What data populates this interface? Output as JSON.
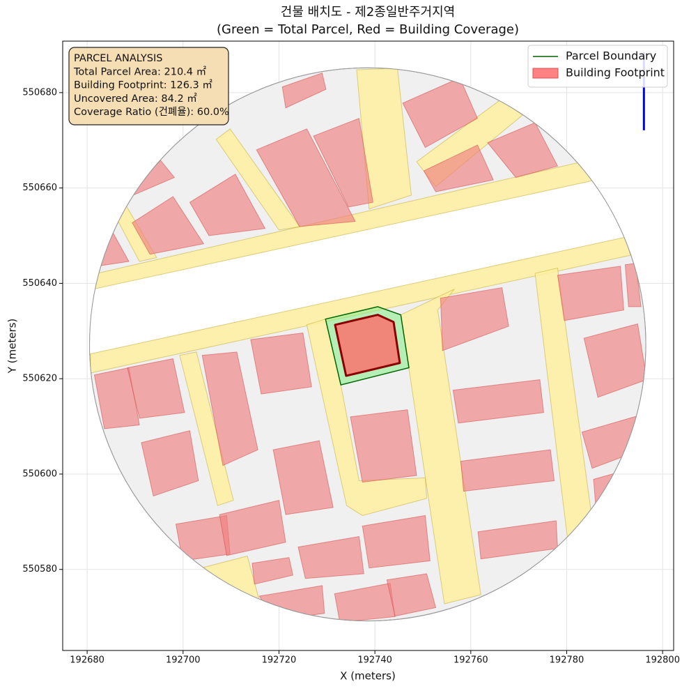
{
  "chart_data": {
    "type": "map",
    "title": [
      "건물 배치도 - 제2종일반주거지역",
      "(Green = Total Parcel, Red = Building Coverage)"
    ],
    "xlabel": "X (meters)",
    "ylabel": "Y (meters)",
    "xlim": [
      192674.9,
      192802.3
    ],
    "ylim": [
      550563.0,
      550690.8
    ],
    "xticks": [
      192680,
      192700,
      192720,
      192740,
      192760,
      192780,
      192800
    ],
    "yticks": [
      550580,
      550600,
      550620,
      550640,
      550660,
      550680
    ],
    "grid": true,
    "legend": "upper right",
    "study_area": {
      "center": [
        192738.5,
        550627.2
      ],
      "radius": 58
    },
    "gap_band": [
      [
        192670,
        550636.3
      ],
      [
        192810,
        550666.9
      ],
      [
        192810,
        550653.6
      ],
      [
        192670,
        550622.9
      ]
    ],
    "roads": [
      [
        [
          192680.4,
          550641.7
        ],
        [
          192783.2,
          550665.5
        ],
        [
          192786.1,
          550661.7
        ],
        [
          192680.4,
          550638.6
        ]
      ],
      [
        [
          192680.7,
          550625.2
        ],
        [
          192792.3,
          550649.7
        ],
        [
          192793.3,
          550645.9
        ],
        [
          192680.7,
          550621.2
        ]
      ],
      [
        [
          192736.2,
          550684.8
        ],
        [
          192744.7,
          550685.1
        ],
        [
          192747.6,
          550658.5
        ],
        [
          192738.8,
          550655.6
        ]
      ],
      [
        [
          192706.9,
          550670.2
        ],
        [
          192709.8,
          550672.4
        ],
        [
          192724.3,
          550651.9
        ],
        [
          192720.0,
          550651.2
        ]
      ],
      [
        [
          192685.1,
          550655.6
        ],
        [
          192687.7,
          550657.0
        ],
        [
          192694.5,
          550645.4
        ],
        [
          192690.9,
          550644.6
        ]
      ],
      [
        [
          192748.7,
          550665.5
        ],
        [
          192766.2,
          550678.5
        ],
        [
          192770.8,
          550675.3
        ],
        [
          192752.7,
          550660.3
        ]
      ],
      [
        [
          192725.8,
          550631.3
        ],
        [
          192729.7,
          550632.5
        ],
        [
          192732.9,
          550618.7
        ],
        [
          192736.7,
          550598.6
        ],
        [
          192750.5,
          550599.2
        ],
        [
          192750.8,
          550594.9
        ],
        [
          192737.4,
          550591.3
        ],
        [
          192734.1,
          550593.4
        ]
      ],
      [
        [
          192745.4,
          550633.4
        ],
        [
          192756.6,
          550638.8
        ],
        [
          192753.1,
          550634.4
        ],
        [
          192762.1,
          550574.7
        ],
        [
          192754.5,
          550572.8
        ]
      ],
      [
        [
          192699.3,
          550624.9
        ],
        [
          192702.8,
          550625.6
        ],
        [
          192710.5,
          550594.5
        ],
        [
          192707.2,
          550593.4
        ]
      ],
      [
        [
          192773.4,
          550642.1
        ],
        [
          192778.1,
          550643.2
        ],
        [
          192785.3,
          550590.5
        ],
        [
          192780.3,
          550585.4
        ]
      ],
      [
        [
          192701.1,
          550579.6
        ],
        [
          192713.4,
          550582.8
        ],
        [
          192716.3,
          550572.0
        ],
        [
          192705.4,
          550576.6
        ]
      ]
    ],
    "buildings": [
      [
        [
          192689.4,
          550652.7
        ],
        [
          192697.9,
          550658.2
        ],
        [
          192704.3,
          550648.3
        ],
        [
          192693.1,
          550646.1
        ]
      ],
      [
        [
          192701.4,
          550657.0
        ],
        [
          192710.9,
          550662.9
        ],
        [
          192717.1,
          550651.5
        ],
        [
          192705.4,
          550650.0
        ]
      ],
      [
        [
          192715.3,
          550668.0
        ],
        [
          192725.8,
          550672.4
        ],
        [
          192735.9,
          550653.0
        ],
        [
          192724.3,
          550651.9
        ]
      ],
      [
        [
          192727.2,
          550670.9
        ],
        [
          192736.7,
          550674.6
        ],
        [
          192739.6,
          550657.0
        ],
        [
          192734.5,
          550656.0
        ]
      ],
      [
        [
          192745.8,
          550677.8
        ],
        [
          192757.7,
          550683.1
        ],
        [
          192761.4,
          550674.6
        ],
        [
          192750.5,
          550668.5
        ]
      ],
      [
        [
          192763.5,
          550669.5
        ],
        [
          192773.4,
          550673.7
        ],
        [
          192778.1,
          550664.6
        ],
        [
          192769.4,
          550662.2
        ]
      ],
      [
        [
          192750.2,
          550663.6
        ],
        [
          192761.4,
          550669.0
        ],
        [
          192764.7,
          550661.7
        ],
        [
          192752.7,
          550659.2
        ]
      ],
      [
        [
          192720.7,
          550681.2
        ],
        [
          192729.0,
          550684.1
        ],
        [
          192729.8,
          550680.7
        ],
        [
          192721.4,
          550676.8
        ]
      ],
      [
        [
          192681.5,
          550643.2
        ],
        [
          192684.4,
          550652.4
        ],
        [
          192688.7,
          550644.6
        ],
        [
          192682.2,
          550643.6
        ]
      ],
      [
        [
          192687.3,
          550657.3
        ],
        [
          192695.3,
          550665.8
        ],
        [
          192698.2,
          550662.2
        ],
        [
          192688.0,
          550657.8
        ]
      ],
      [
        [
          192753.7,
          550636.9
        ],
        [
          192766.5,
          550639.1
        ],
        [
          192767.9,
          550631.0
        ],
        [
          192754.1,
          550625.9
        ]
      ],
      [
        [
          192778.1,
          550641.7
        ],
        [
          192791.2,
          550643.6
        ],
        [
          192791.9,
          550634.4
        ],
        [
          192779.5,
          550632.2
        ]
      ],
      [
        [
          192783.6,
          550628.5
        ],
        [
          192794.8,
          550631.5
        ],
        [
          192796.7,
          550619.8
        ],
        [
          192786.5,
          550616.1
        ]
      ],
      [
        [
          192714.1,
          550628.2
        ],
        [
          192725.0,
          550629.6
        ],
        [
          192726.8,
          550618.3
        ],
        [
          192716.3,
          550616.8
        ]
      ],
      [
        [
          192704.0,
          550624.9
        ],
        [
          192711.2,
          550625.6
        ],
        [
          192715.6,
          550605.1
        ],
        [
          192708.3,
          550601.8
        ]
      ],
      [
        [
          192681.5,
          550620.8
        ],
        [
          192688.7,
          550622.3
        ],
        [
          192690.9,
          550610.3
        ],
        [
          192683.6,
          550609.5
        ]
      ],
      [
        [
          192688.4,
          550622.3
        ],
        [
          192697.9,
          550624.2
        ],
        [
          192700.3,
          550612.9
        ],
        [
          192690.9,
          550611.7
        ]
      ],
      [
        [
          192691.3,
          550606.6
        ],
        [
          192701.4,
          550609.1
        ],
        [
          192703.2,
          550598.6
        ],
        [
          192693.8,
          550595.4
        ]
      ],
      [
        [
          192718.8,
          550605.1
        ],
        [
          192728.4,
          550607.0
        ],
        [
          192731.3,
          550593.0
        ],
        [
          192721.4,
          550591.5
        ]
      ],
      [
        [
          192734.9,
          550612.0
        ],
        [
          192746.8,
          550613.5
        ],
        [
          192748.7,
          550599.7
        ],
        [
          192737.4,
          550598.3
        ]
      ],
      [
        [
          192756.3,
          550617.6
        ],
        [
          192774.4,
          550619.8
        ],
        [
          192775.2,
          550612.9
        ],
        [
          192757.4,
          550610.7
        ]
      ],
      [
        [
          192757.9,
          550602.7
        ],
        [
          192776.6,
          550605.1
        ],
        [
          192777.4,
          550598.6
        ],
        [
          192758.5,
          550596.4
        ]
      ],
      [
        [
          192783.2,
          550608.8
        ],
        [
          192795.8,
          550612.5
        ],
        [
          192797.7,
          550605.9
        ],
        [
          192785.3,
          550601.2
        ]
      ],
      [
        [
          192698.5,
          550589.5
        ],
        [
          192709.1,
          550591.3
        ],
        [
          192709.8,
          550583.2
        ],
        [
          192699.9,
          550581.8
        ]
      ],
      [
        [
          192707.6,
          550591.5
        ],
        [
          192720.0,
          550594.5
        ],
        [
          192721.4,
          550585.7
        ],
        [
          192709.1,
          550582.9
        ]
      ],
      [
        [
          192724.0,
          550584.7
        ],
        [
          192736.7,
          550586.9
        ],
        [
          192737.7,
          550579.1
        ],
        [
          192725.5,
          550578.1
        ]
      ],
      [
        [
          192737.4,
          550589.1
        ],
        [
          192750.5,
          550591.3
        ],
        [
          192751.5,
          550581.8
        ],
        [
          192738.8,
          550580.3
        ]
      ],
      [
        [
          192761.5,
          550587.9
        ],
        [
          192777.8,
          550590.2
        ],
        [
          192778.1,
          550584.4
        ],
        [
          192762.1,
          550582.2
        ]
      ],
      [
        [
          192714.4,
          550581.3
        ],
        [
          192722.1,
          550582.5
        ],
        [
          192722.9,
          550578.8
        ],
        [
          192714.9,
          550576.9
        ]
      ],
      [
        [
          192715.9,
          550574.4
        ],
        [
          192729.0,
          550576.6
        ],
        [
          192729.5,
          550570.8
        ],
        [
          192719.2,
          550569.3
        ]
      ],
      [
        [
          192731.6,
          550574.9
        ],
        [
          192743.2,
          550577.1
        ],
        [
          192744.2,
          550570.1
        ],
        [
          192732.7,
          550568.9
        ]
      ],
      [
        [
          192742.5,
          550577.8
        ],
        [
          192750.8,
          550579.1
        ],
        [
          192752.7,
          550572.0
        ],
        [
          192744.2,
          550570.2
        ]
      ],
      [
        [
          192785.6,
          550598.9
        ],
        [
          192791.2,
          550600.5
        ],
        [
          192791.9,
          550594.2
        ],
        [
          192786.1,
          550592.7
        ]
      ],
      [
        [
          192792.2,
          550643.9
        ],
        [
          192794.4,
          550644.2
        ],
        [
          192795.5,
          550635.1
        ],
        [
          192792.9,
          550635.1
        ]
      ]
    ],
    "series": [
      {
        "name": "Parcel Boundary",
        "color": "#006400",
        "fill": "#90ee90",
        "polygon": [
          [
            192729.7,
            550632.5
          ],
          [
            192740.6,
            550635.1
          ],
          [
            192745.4,
            550633.4
          ],
          [
            192747.1,
            550622.3
          ],
          [
            192732.9,
            550618.7
          ]
        ]
      },
      {
        "name": "Building Footprint",
        "color": "#8b0000",
        "fill": "#ff6b6b",
        "polygon": [
          [
            192731.7,
            550631.3
          ],
          [
            192740.6,
            550633.4
          ],
          [
            192743.9,
            550631.9
          ],
          [
            192745.2,
            550623.3
          ],
          [
            192734.0,
            550620.6
          ]
        ]
      }
    ],
    "annotation": [
      "PARCEL ANALYSIS",
      "Total Parcel Area: 210.4 ㎡",
      "Building Footprint: 126.3 ㎡",
      "Uncovered Area: 84.2 ㎡",
      "Coverage Ratio (건폐율): 60.0%"
    ],
    "north_arrow": {
      "x": 192796.1,
      "y": [
        550672.1,
        550688.5
      ]
    }
  }
}
